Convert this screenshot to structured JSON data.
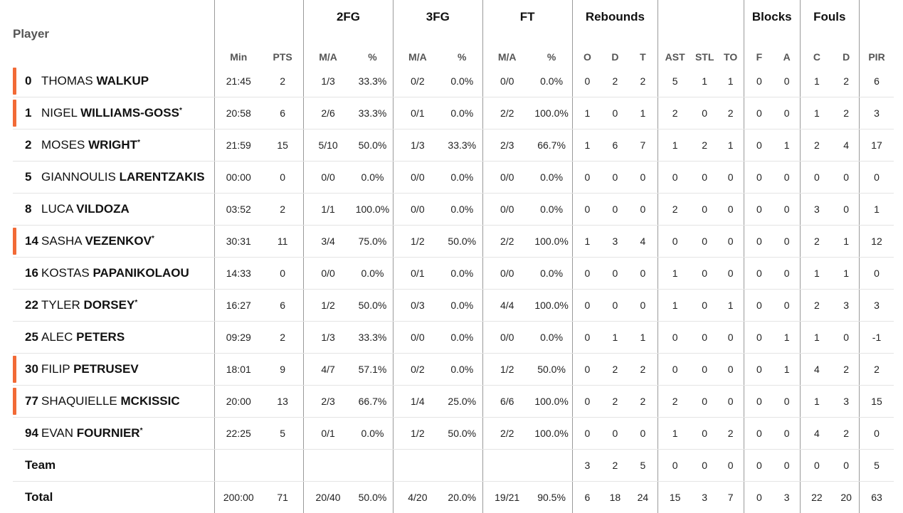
{
  "groups": {
    "fg2": "2FG",
    "fg3": "3FG",
    "ft": "FT",
    "rebounds": "Rebounds",
    "blocks": "Blocks",
    "fouls": "Fouls"
  },
  "player_label": "Player",
  "columns": {
    "min": "Min",
    "pts": "PTS",
    "fg2_ma": "M/A",
    "fg2_pct": "%",
    "fg3_ma": "M/A",
    "fg3_pct": "%",
    "ft_ma": "M/A",
    "ft_pct": "%",
    "reb_o": "O",
    "reb_d": "D",
    "reb_t": "T",
    "ast": "AST",
    "stl": "STL",
    "to": "TO",
    "blk_f": "F",
    "blk_a": "A",
    "foul_c": "C",
    "foul_d": "D",
    "pir": "PIR"
  },
  "accent_color": "#f26a36",
  "players": [
    {
      "number": "0",
      "first": "THOMAS",
      "last": "WALKUP",
      "star": "",
      "starter": true,
      "stats": [
        "21:45",
        "2",
        "1/3",
        "33.3%",
        "0/2",
        "0.0%",
        "0/0",
        "0.0%",
        "0",
        "2",
        "2",
        "5",
        "1",
        "1",
        "0",
        "0",
        "1",
        "2",
        "6"
      ]
    },
    {
      "number": "1",
      "first": "NIGEL",
      "last": "WILLIAMS-GOSS",
      "star": "*",
      "starter": true,
      "stats": [
        "20:58",
        "6",
        "2/6",
        "33.3%",
        "0/1",
        "0.0%",
        "2/2",
        "100.0%",
        "1",
        "0",
        "1",
        "2",
        "0",
        "2",
        "0",
        "0",
        "1",
        "2",
        "3"
      ]
    },
    {
      "number": "2",
      "first": "MOSES",
      "last": "WRIGHT",
      "star": "*",
      "starter": false,
      "stats": [
        "21:59",
        "15",
        "5/10",
        "50.0%",
        "1/3",
        "33.3%",
        "2/3",
        "66.7%",
        "1",
        "6",
        "7",
        "1",
        "2",
        "1",
        "0",
        "1",
        "2",
        "4",
        "17"
      ]
    },
    {
      "number": "5",
      "first": "GIANNOULIS",
      "last": "LARENTZAKIS",
      "star": "",
      "starter": false,
      "stats": [
        "00:00",
        "0",
        "0/0",
        "0.0%",
        "0/0",
        "0.0%",
        "0/0",
        "0.0%",
        "0",
        "0",
        "0",
        "0",
        "0",
        "0",
        "0",
        "0",
        "0",
        "0",
        "0"
      ]
    },
    {
      "number": "8",
      "first": "LUCA",
      "last": "VILDOZA",
      "star": "",
      "starter": false,
      "stats": [
        "03:52",
        "2",
        "1/1",
        "100.0%",
        "0/0",
        "0.0%",
        "0/0",
        "0.0%",
        "0",
        "0",
        "0",
        "2",
        "0",
        "0",
        "0",
        "0",
        "3",
        "0",
        "1"
      ]
    },
    {
      "number": "14",
      "first": "SASHA",
      "last": "VEZENKOV",
      "star": "*",
      "starter": true,
      "stats": [
        "30:31",
        "11",
        "3/4",
        "75.0%",
        "1/2",
        "50.0%",
        "2/2",
        "100.0%",
        "1",
        "3",
        "4",
        "0",
        "0",
        "0",
        "0",
        "0",
        "2",
        "1",
        "12"
      ]
    },
    {
      "number": "16",
      "first": "KOSTAS",
      "last": "PAPANIKOLAOU",
      "star": "",
      "starter": false,
      "stats": [
        "14:33",
        "0",
        "0/0",
        "0.0%",
        "0/1",
        "0.0%",
        "0/0",
        "0.0%",
        "0",
        "0",
        "0",
        "1",
        "0",
        "0",
        "0",
        "0",
        "1",
        "1",
        "0"
      ]
    },
    {
      "number": "22",
      "first": "TYLER",
      "last": "DORSEY",
      "star": "*",
      "starter": false,
      "stats": [
        "16:27",
        "6",
        "1/2",
        "50.0%",
        "0/3",
        "0.0%",
        "4/4",
        "100.0%",
        "0",
        "0",
        "0",
        "1",
        "0",
        "1",
        "0",
        "0",
        "2",
        "3",
        "3"
      ]
    },
    {
      "number": "25",
      "first": "ALEC",
      "last": "PETERS",
      "star": "",
      "starter": false,
      "stats": [
        "09:29",
        "2",
        "1/3",
        "33.3%",
        "0/0",
        "0.0%",
        "0/0",
        "0.0%",
        "0",
        "1",
        "1",
        "0",
        "0",
        "0",
        "0",
        "1",
        "1",
        "0",
        "-1"
      ]
    },
    {
      "number": "30",
      "first": "FILIP",
      "last": "PETRUSEV",
      "star": "",
      "starter": true,
      "stats": [
        "18:01",
        "9",
        "4/7",
        "57.1%",
        "0/2",
        "0.0%",
        "1/2",
        "50.0%",
        "0",
        "2",
        "2",
        "0",
        "0",
        "0",
        "0",
        "1",
        "4",
        "2",
        "2"
      ]
    },
    {
      "number": "77",
      "first": "SHAQUIELLE",
      "last": "MCKISSIC",
      "star": "",
      "starter": true,
      "stats": [
        "20:00",
        "13",
        "2/3",
        "66.7%",
        "1/4",
        "25.0%",
        "6/6",
        "100.0%",
        "0",
        "2",
        "2",
        "2",
        "0",
        "0",
        "0",
        "0",
        "1",
        "3",
        "15"
      ]
    },
    {
      "number": "94",
      "first": "EVAN",
      "last": "FOURNIER",
      "star": "*",
      "starter": false,
      "stats": [
        "22:25",
        "5",
        "0/1",
        "0.0%",
        "1/2",
        "50.0%",
        "2/2",
        "100.0%",
        "0",
        "0",
        "0",
        "1",
        "0",
        "2",
        "0",
        "0",
        "4",
        "2",
        "0"
      ]
    }
  ],
  "team": {
    "label": "Team",
    "stats": [
      "",
      "",
      "",
      "",
      "",
      "",
      "",
      "",
      "3",
      "2",
      "5",
      "0",
      "0",
      "0",
      "0",
      "0",
      "0",
      "0",
      "5"
    ]
  },
  "total": {
    "label": "Total",
    "stats": [
      "200:00",
      "71",
      "20/40",
      "50.0%",
      "4/20",
      "20.0%",
      "19/21",
      "90.5%",
      "6",
      "18",
      "24",
      "15",
      "3",
      "7",
      "0",
      "3",
      "22",
      "20",
      "63"
    ]
  }
}
